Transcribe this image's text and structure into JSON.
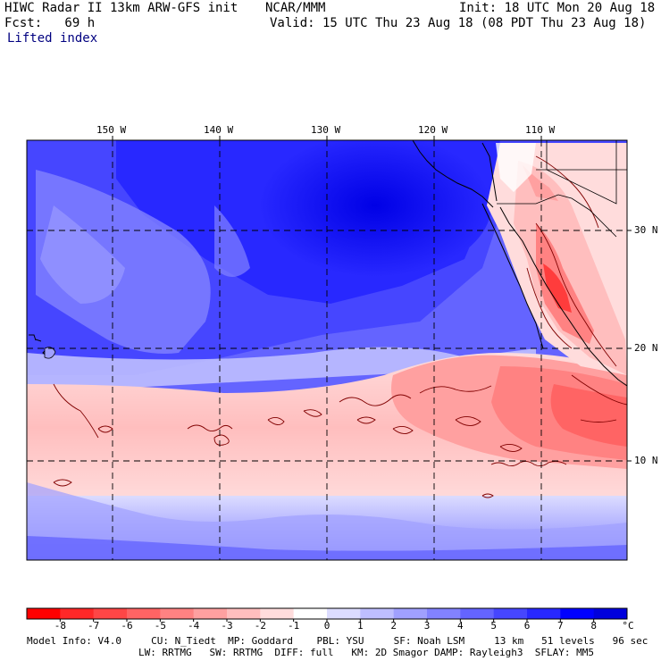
{
  "header": {
    "line1_left": "HIWC Radar II 13km ARW-GFS init",
    "line1_mid": "NCAR/MMM",
    "line1_right": "Init: 18 UTC Mon 20 Aug 18",
    "line2_left": "Fcst:   69 h",
    "line2_right": "Valid: 15 UTC Thu 23 Aug 18 (08 PDT Thu 23 Aug 18)",
    "field": "Lifted index"
  },
  "map": {
    "lon_labels": [
      "150 W",
      "140 W",
      "130 W",
      "120 W",
      "110 W"
    ],
    "lat_labels": [
      "30 N",
      "20 N",
      "10 N"
    ]
  },
  "colorbar": {
    "labels": [
      "-8",
      "-7",
      "-6",
      "-5",
      "-4",
      "-3",
      "-2",
      "-1",
      "0",
      "1",
      "2",
      "3",
      "4",
      "5",
      "6",
      "7",
      "8"
    ],
    "unit": "°C",
    "colors": [
      "#ff0000",
      "#ff2828",
      "#ff4646",
      "#ff6464",
      "#ff8282",
      "#ffa0a0",
      "#ffbebe",
      "#ffdcdc",
      "#ffffff",
      "#dcdcff",
      "#bebeff",
      "#a0a0ff",
      "#8282ff",
      "#6464ff",
      "#4646ff",
      "#2828ff",
      "#0000ff",
      "#0000dc"
    ]
  },
  "footer": {
    "line1": "Model Info: V4.0     CU: N_Tiedt  MP: Goddard    PBL: YSU     SF: Noah LSM     13 km   51 levels   96 sec",
    "line2": "LW: RRTMG   SW: RRTMG  DIFF: full   KM: 2D Smagor DAMP: Rayleigh3  SFLAY: MM5"
  }
}
